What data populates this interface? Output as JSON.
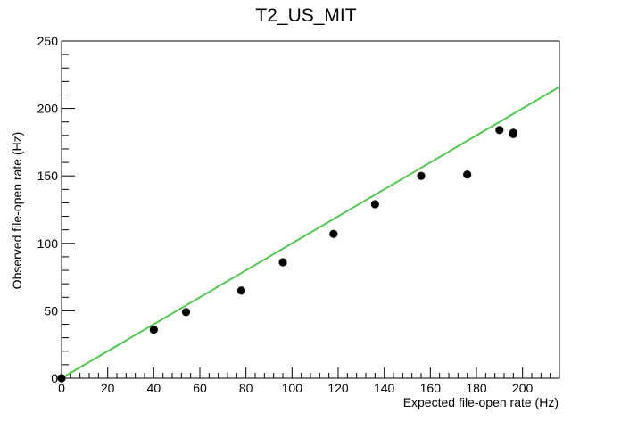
{
  "chart_data": {
    "type": "scatter",
    "title": "T2_US_MIT",
    "xlabel": "Expected file-open rate (Hz)",
    "ylabel": "Observed file-open rate (Hz)",
    "xlim": [
      0,
      216
    ],
    "ylim": [
      0,
      250
    ],
    "x_ticks": [
      0,
      20,
      40,
      60,
      80,
      100,
      120,
      140,
      160,
      180,
      200
    ],
    "y_ticks": [
      0,
      50,
      100,
      150,
      200,
      250
    ],
    "grid": false,
    "series": [
      {
        "type": "scatter",
        "color": "#000000",
        "marker": "circle",
        "x": [
          0,
          40,
          54,
          78,
          96,
          118,
          136,
          156,
          176,
          190,
          196,
          196
        ],
        "y": [
          0,
          36,
          49,
          65,
          86,
          107,
          129,
          150,
          151,
          184,
          181,
          182
        ]
      },
      {
        "type": "line",
        "color": "#4fc94f",
        "x": [
          0,
          216
        ],
        "y": [
          0,
          216
        ]
      }
    ]
  }
}
